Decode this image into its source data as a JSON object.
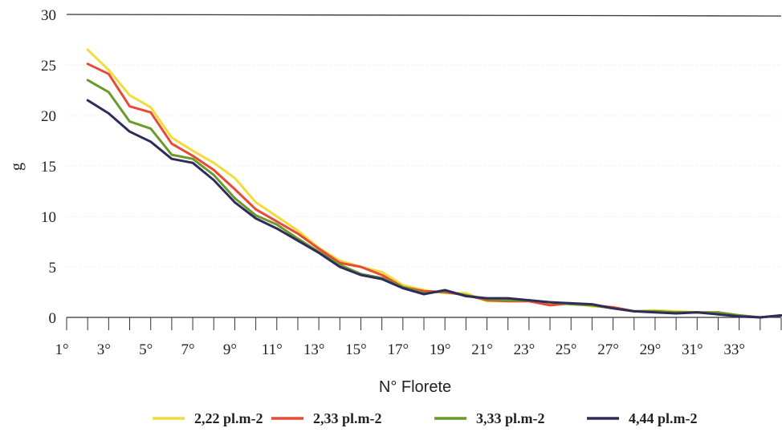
{
  "chart_data": {
    "type": "line",
    "title": "",
    "xlabel": "N° Florete",
    "ylabel": "g",
    "ylim": [
      0,
      30
    ],
    "yticks": [
      0,
      5,
      10,
      15,
      20,
      25,
      30
    ],
    "xlim": [
      1,
      35
    ],
    "xtick_labels": [
      "1°",
      "3°",
      "5°",
      "7°",
      "9°",
      "11°",
      "13°",
      "15°",
      "17°",
      "19°",
      "21°",
      "23°",
      "25°",
      "27°",
      "29°",
      "31°",
      "33°"
    ],
    "grid": true,
    "legend_position": "bottom",
    "x": [
      2,
      3,
      4,
      5,
      6,
      7,
      8,
      9,
      10,
      11,
      12,
      13,
      14,
      15,
      16,
      17,
      18,
      19,
      20,
      21,
      22,
      23,
      24,
      25,
      26,
      27,
      28,
      29,
      30,
      31,
      32,
      33,
      34,
      35
    ],
    "series": [
      {
        "name": "2,22 pl.m-2",
        "color": "#f2dc3c",
        "values": [
          26.5,
          24.5,
          22.0,
          20.8,
          17.8,
          16.5,
          15.3,
          13.8,
          11.4,
          10.0,
          8.6,
          6.9,
          5.6,
          5.0,
          4.5,
          3.2,
          2.7,
          2.4,
          2.4,
          1.6,
          1.6,
          1.6,
          1.3,
          1.4,
          1.1,
          1.0,
          0.6,
          0.7,
          0.6,
          0.5,
          0.5,
          0.2,
          0.0,
          0.2
        ]
      },
      {
        "name": "2,33 pl.m-2",
        "color": "#e84a36",
        "values": [
          25.1,
          24.1,
          20.9,
          20.3,
          17.2,
          16.0,
          14.6,
          12.7,
          10.7,
          9.5,
          8.3,
          6.8,
          5.4,
          5.0,
          4.2,
          3.0,
          2.6,
          2.5,
          2.2,
          1.7,
          1.6,
          1.6,
          1.2,
          1.4,
          1.2,
          1.0,
          0.6,
          0.6,
          0.5,
          0.5,
          0.4,
          0.2,
          0.0,
          0.2
        ]
      },
      {
        "name": "3,33 pl.m-2",
        "color": "#6b9a2a",
        "values": [
          23.5,
          22.3,
          19.4,
          18.7,
          16.1,
          15.7,
          14.1,
          11.8,
          10.1,
          9.2,
          7.8,
          6.5,
          5.2,
          4.3,
          3.9,
          3.0,
          2.4,
          2.6,
          2.2,
          1.8,
          1.7,
          1.7,
          1.5,
          1.3,
          1.2,
          0.9,
          0.6,
          0.6,
          0.5,
          0.5,
          0.5,
          0.2,
          0.0,
          0.2
        ]
      },
      {
        "name": "4,44 pl.m-2",
        "color": "#2e2c5c",
        "values": [
          21.5,
          20.2,
          18.4,
          17.4,
          15.7,
          15.3,
          13.6,
          11.4,
          9.8,
          8.8,
          7.6,
          6.4,
          5.0,
          4.2,
          3.8,
          2.9,
          2.3,
          2.7,
          2.1,
          1.9,
          1.9,
          1.7,
          1.5,
          1.4,
          1.3,
          0.9,
          0.6,
          0.5,
          0.4,
          0.5,
          0.3,
          0.1,
          0.0,
          0.2
        ]
      }
    ]
  }
}
